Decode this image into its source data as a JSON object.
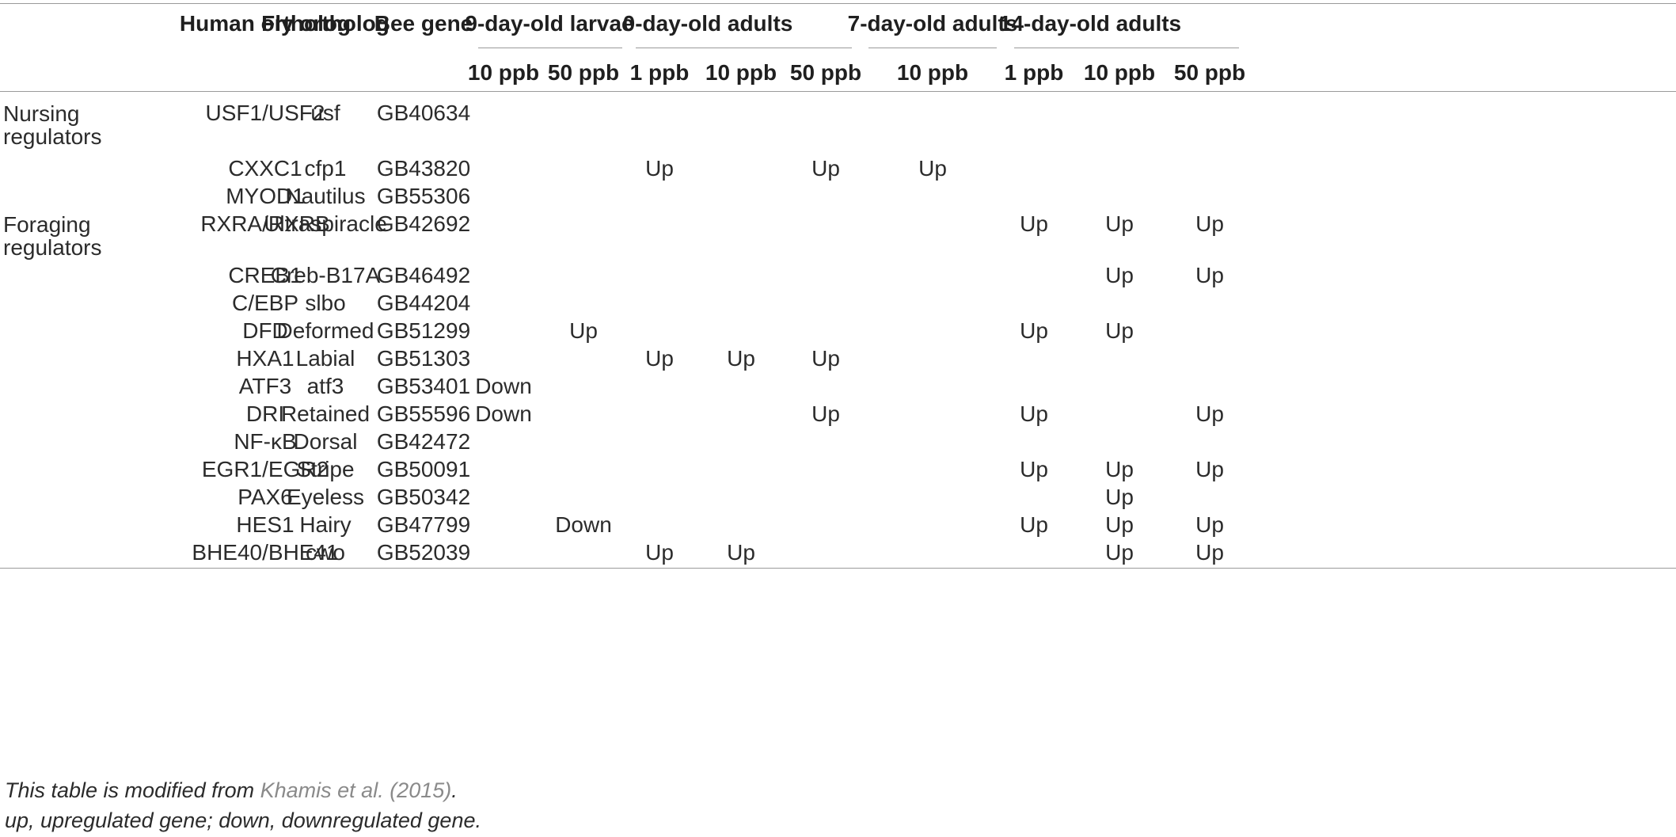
{
  "header": {
    "human": "Human ortholog",
    "fly": "Fly ortholog",
    "bee": "Bee gene",
    "groups": [
      {
        "label": "9-day-old larvae",
        "subcols": [
          "10 ppb",
          "50 ppb"
        ]
      },
      {
        "label": "0-day-old adults",
        "subcols": [
          "1 ppb",
          "10 ppb",
          "50 ppb"
        ]
      },
      {
        "label": "7-day-old adults",
        "subcols": [
          "10 ppb"
        ]
      },
      {
        "label": "14-day-old adults",
        "subcols": [
          "1 ppb",
          "10 ppb",
          "50 ppb"
        ]
      }
    ]
  },
  "sections": [
    {
      "label": "Nursing regulators"
    },
    {
      "label": "Foraging regulators"
    }
  ],
  "rows": [
    {
      "human": "USF1/USF2",
      "fly": "usf",
      "bee": "GB40634",
      "vals": [
        "",
        "",
        "",
        "",
        "",
        "",
        "",
        "",
        ""
      ]
    },
    {
      "human": "CXXC1",
      "fly": "cfp1",
      "bee": "GB43820",
      "vals": [
        "",
        "",
        "Up",
        "",
        "Up",
        "Up",
        "",
        "",
        ""
      ]
    },
    {
      "human": "MYOD1",
      "fly": "Nautilus",
      "bee": "GB55306",
      "vals": [
        "",
        "",
        "",
        "",
        "",
        "",
        "",
        "",
        ""
      ]
    },
    {
      "human": "RXRA/RXRB",
      "fly": "Ultraspiracle",
      "bee": "GB42692",
      "vals": [
        "",
        "",
        "",
        "",
        "",
        "",
        "Up",
        "Up",
        "Up"
      ]
    },
    {
      "human": "CREB1",
      "fly": "Creb-B17A",
      "bee": "GB46492",
      "vals": [
        "",
        "",
        "",
        "",
        "",
        "",
        "",
        "Up",
        "Up"
      ]
    },
    {
      "human": "C/EBP",
      "fly": "slbo",
      "bee": "GB44204",
      "vals": [
        "",
        "",
        "",
        "",
        "",
        "",
        "",
        "",
        ""
      ]
    },
    {
      "human": "DFD",
      "fly": "Deformed",
      "bee": "GB51299",
      "vals": [
        "",
        "Up",
        "",
        "",
        "",
        "",
        "Up",
        "Up",
        ""
      ]
    },
    {
      "human": "HXA1",
      "fly": "Labial",
      "bee": "GB51303",
      "vals": [
        "",
        "",
        "Up",
        "Up",
        "Up",
        "",
        "",
        "",
        ""
      ]
    },
    {
      "human": "ATF3",
      "fly": "atf3",
      "bee": "GB53401",
      "vals": [
        "Down",
        "",
        "",
        "",
        "",
        "",
        "",
        "",
        ""
      ]
    },
    {
      "human": "DRI",
      "fly": "Retained",
      "bee": "GB55596",
      "vals": [
        "Down",
        "",
        "",
        "",
        "Up",
        "",
        "Up",
        "",
        "Up"
      ]
    },
    {
      "human": "NF-κB",
      "fly": "Dorsal",
      "bee": "GB42472",
      "vals": [
        "",
        "",
        "",
        "",
        "",
        "",
        "",
        "",
        ""
      ]
    },
    {
      "human": "EGR1/EGR2",
      "fly": "Stripe",
      "bee": "GB50091",
      "vals": [
        "",
        "",
        "",
        "",
        "",
        "",
        "Up",
        "Up",
        "Up"
      ]
    },
    {
      "human": "PAX6",
      "fly": "Eyeless",
      "bee": "GB50342",
      "vals": [
        "",
        "",
        "",
        "",
        "",
        "",
        "",
        "Up",
        ""
      ]
    },
    {
      "human": "HES1",
      "fly": "Hairy",
      "bee": "GB47799",
      "vals": [
        "",
        "Down",
        "",
        "",
        "",
        "",
        "Up",
        "Up",
        "Up"
      ]
    },
    {
      "human": "BHE40/BHE41",
      "fly": "cwo",
      "bee": "GB52039",
      "vals": [
        "",
        "",
        "Up",
        "Up",
        "",
        "",
        "",
        "Up",
        "Up"
      ]
    }
  ],
  "footnotes": {
    "line1_prefix": "This table is modified from ",
    "line1_ref": "Khamis et al. (2015)",
    "line1_suffix": ".",
    "line2": "up, upregulated gene; down, downregulated gene."
  }
}
